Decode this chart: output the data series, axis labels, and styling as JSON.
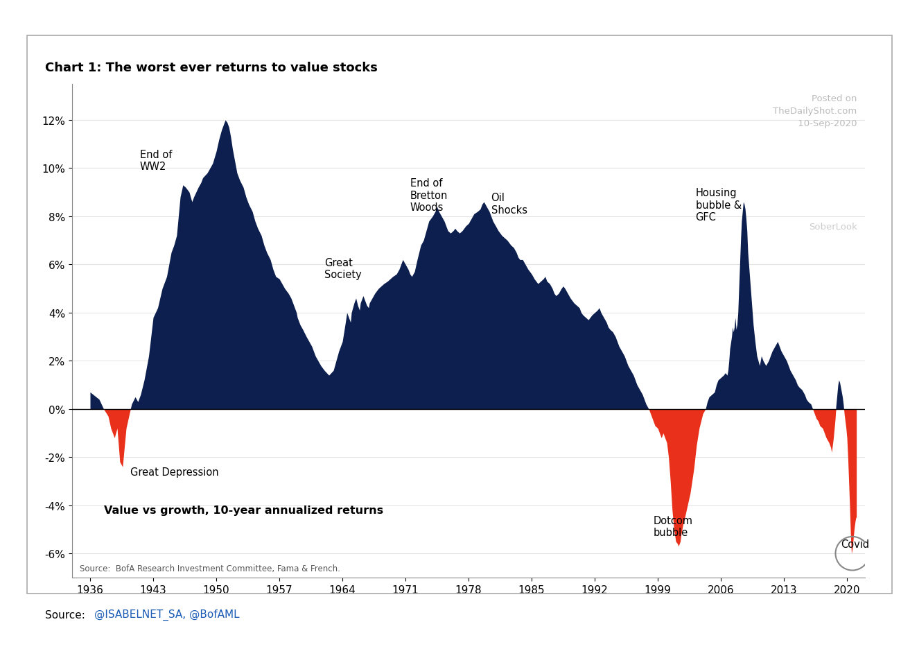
{
  "title": "Chart 1: The worst ever returns to value stocks",
  "subtitle": "Value vs growth, 10-year annualized returns",
  "source_inner": "Source:  BofA Research Investment Committee, Fama & French.",
  "source_outer_prefix": "Source: ",
  "source_outer_link": "@ISABELNET_SA, @BofAML",
  "watermark_line1": "Posted on",
  "watermark_line2": "TheDailyShot.com",
  "watermark_line3": "10-Sep-2020",
  "watermark_line4": "SoberLook",
  "positive_color": "#0d1f4e",
  "negative_color": "#e8301a",
  "background_color": "#ffffff",
  "chart_bg_color": "#ffffff",
  "ylim": [
    -0.07,
    0.135
  ],
  "yticks": [
    -0.06,
    -0.04,
    -0.02,
    0.0,
    0.02,
    0.04,
    0.06,
    0.08,
    0.1,
    0.12
  ],
  "ytick_labels": [
    "-6%",
    "-4%",
    "-2%",
    "0%",
    "2%",
    "4%",
    "6%",
    "8%",
    "10%",
    "12%"
  ],
  "xtick_years": [
    1936,
    1943,
    1950,
    1957,
    1964,
    1971,
    1978,
    1985,
    1992,
    1999,
    2006,
    2013,
    2020
  ],
  "key_data": [
    [
      1936,
      0.007
    ],
    [
      1937,
      0.004
    ],
    [
      1937.5,
      0.0
    ],
    [
      1938,
      -0.003
    ],
    [
      1938.3,
      -0.008
    ],
    [
      1938.7,
      -0.012
    ],
    [
      1939,
      -0.008
    ],
    [
      1939.3,
      -0.022
    ],
    [
      1939.6,
      -0.024
    ],
    [
      1940,
      -0.008
    ],
    [
      1940.3,
      -0.003
    ],
    [
      1940.6,
      0.002
    ],
    [
      1941,
      0.005
    ],
    [
      1941.3,
      0.003
    ],
    [
      1941.6,
      0.006
    ],
    [
      1942,
      0.012
    ],
    [
      1942.5,
      0.022
    ],
    [
      1943,
      0.038
    ],
    [
      1943.5,
      0.042
    ],
    [
      1944,
      0.05
    ],
    [
      1944.5,
      0.055
    ],
    [
      1945,
      0.065
    ],
    [
      1945.3,
      0.068
    ],
    [
      1945.6,
      0.072
    ],
    [
      1946,
      0.088
    ],
    [
      1946.3,
      0.093
    ],
    [
      1946.6,
      0.092
    ],
    [
      1947,
      0.09
    ],
    [
      1947.3,
      0.086
    ],
    [
      1947.5,
      0.088
    ],
    [
      1948,
      0.092
    ],
    [
      1948.3,
      0.094
    ],
    [
      1948.5,
      0.096
    ],
    [
      1949,
      0.098
    ],
    [
      1949.3,
      0.1
    ],
    [
      1949.6,
      0.102
    ],
    [
      1950,
      0.107
    ],
    [
      1950.3,
      0.112
    ],
    [
      1950.6,
      0.116
    ],
    [
      1951,
      0.12
    ],
    [
      1951.2,
      0.119
    ],
    [
      1951.4,
      0.117
    ],
    [
      1951.6,
      0.113
    ],
    [
      1951.8,
      0.108
    ],
    [
      1952,
      0.104
    ],
    [
      1952.3,
      0.098
    ],
    [
      1952.6,
      0.095
    ],
    [
      1953,
      0.092
    ],
    [
      1953.3,
      0.088
    ],
    [
      1953.6,
      0.085
    ],
    [
      1954,
      0.082
    ],
    [
      1954.3,
      0.078
    ],
    [
      1954.6,
      0.075
    ],
    [
      1955,
      0.072
    ],
    [
      1955.3,
      0.068
    ],
    [
      1955.6,
      0.065
    ],
    [
      1956,
      0.062
    ],
    [
      1956.3,
      0.058
    ],
    [
      1956.6,
      0.055
    ],
    [
      1957,
      0.054
    ],
    [
      1957.3,
      0.052
    ],
    [
      1957.6,
      0.05
    ],
    [
      1958,
      0.048
    ],
    [
      1958.3,
      0.046
    ],
    [
      1958.5,
      0.044
    ],
    [
      1958.7,
      0.042
    ],
    [
      1958.9,
      0.04
    ],
    [
      1959,
      0.038
    ],
    [
      1959.3,
      0.035
    ],
    [
      1959.6,
      0.033
    ],
    [
      1960,
      0.03
    ],
    [
      1960.3,
      0.028
    ],
    [
      1960.6,
      0.026
    ],
    [
      1961,
      0.022
    ],
    [
      1961.3,
      0.02
    ],
    [
      1961.6,
      0.018
    ],
    [
      1962,
      0.016
    ],
    [
      1962.5,
      0.014
    ],
    [
      1963,
      0.016
    ],
    [
      1963.3,
      0.02
    ],
    [
      1963.6,
      0.024
    ],
    [
      1964,
      0.028
    ],
    [
      1964.3,
      0.035
    ],
    [
      1964.5,
      0.04
    ],
    [
      1964.7,
      0.038
    ],
    [
      1964.9,
      0.036
    ],
    [
      1965,
      0.04
    ],
    [
      1965.3,
      0.044
    ],
    [
      1965.5,
      0.046
    ],
    [
      1965.7,
      0.043
    ],
    [
      1965.9,
      0.041
    ],
    [
      1966,
      0.044
    ],
    [
      1966.3,
      0.047
    ],
    [
      1966.5,
      0.045
    ],
    [
      1966.7,
      0.043
    ],
    [
      1966.9,
      0.042
    ],
    [
      1967,
      0.044
    ],
    [
      1967.3,
      0.046
    ],
    [
      1967.6,
      0.048
    ],
    [
      1968,
      0.05
    ],
    [
      1968.3,
      0.051
    ],
    [
      1968.6,
      0.052
    ],
    [
      1969,
      0.053
    ],
    [
      1969.3,
      0.054
    ],
    [
      1969.6,
      0.055
    ],
    [
      1970,
      0.056
    ],
    [
      1970.3,
      0.058
    ],
    [
      1970.5,
      0.06
    ],
    [
      1970.7,
      0.062
    ],
    [
      1971,
      0.06
    ],
    [
      1971.3,
      0.058
    ],
    [
      1971.5,
      0.056
    ],
    [
      1971.7,
      0.055
    ],
    [
      1972,
      0.057
    ],
    [
      1972.3,
      0.062
    ],
    [
      1972.5,
      0.065
    ],
    [
      1972.7,
      0.068
    ],
    [
      1973,
      0.07
    ],
    [
      1973.3,
      0.074
    ],
    [
      1973.6,
      0.078
    ],
    [
      1974,
      0.08
    ],
    [
      1974.3,
      0.082
    ],
    [
      1974.5,
      0.084
    ],
    [
      1974.7,
      0.082
    ],
    [
      1975,
      0.08
    ],
    [
      1975.3,
      0.078
    ],
    [
      1975.5,
      0.076
    ],
    [
      1975.7,
      0.074
    ],
    [
      1976,
      0.073
    ],
    [
      1976.3,
      0.074
    ],
    [
      1976.5,
      0.075
    ],
    [
      1976.7,
      0.074
    ],
    [
      1977,
      0.073
    ],
    [
      1977.3,
      0.074
    ],
    [
      1977.5,
      0.075
    ],
    [
      1977.7,
      0.076
    ],
    [
      1978,
      0.077
    ],
    [
      1978.3,
      0.079
    ],
    [
      1978.6,
      0.081
    ],
    [
      1979,
      0.082
    ],
    [
      1979.3,
      0.083
    ],
    [
      1979.5,
      0.085
    ],
    [
      1979.7,
      0.086
    ],
    [
      1980,
      0.084
    ],
    [
      1980.3,
      0.082
    ],
    [
      1980.5,
      0.08
    ],
    [
      1980.7,
      0.078
    ],
    [
      1981,
      0.076
    ],
    [
      1981.3,
      0.074
    ],
    [
      1981.5,
      0.073
    ],
    [
      1981.7,
      0.072
    ],
    [
      1982,
      0.071
    ],
    [
      1982.3,
      0.07
    ],
    [
      1982.5,
      0.069
    ],
    [
      1982.7,
      0.068
    ],
    [
      1983,
      0.067
    ],
    [
      1983.3,
      0.065
    ],
    [
      1983.5,
      0.063
    ],
    [
      1983.7,
      0.062
    ],
    [
      1984,
      0.062
    ],
    [
      1984.3,
      0.06
    ],
    [
      1984.6,
      0.058
    ],
    [
      1985,
      0.056
    ],
    [
      1985.3,
      0.054
    ],
    [
      1985.5,
      0.053
    ],
    [
      1985.7,
      0.052
    ],
    [
      1986,
      0.053
    ],
    [
      1986.3,
      0.054
    ],
    [
      1986.5,
      0.055
    ],
    [
      1986.7,
      0.053
    ],
    [
      1987,
      0.052
    ],
    [
      1987.3,
      0.05
    ],
    [
      1987.5,
      0.048
    ],
    [
      1987.7,
      0.047
    ],
    [
      1988,
      0.048
    ],
    [
      1988.3,
      0.05
    ],
    [
      1988.5,
      0.051
    ],
    [
      1988.7,
      0.05
    ],
    [
      1989,
      0.048
    ],
    [
      1989.3,
      0.046
    ],
    [
      1989.5,
      0.045
    ],
    [
      1989.7,
      0.044
    ],
    [
      1990,
      0.043
    ],
    [
      1990.3,
      0.042
    ],
    [
      1990.5,
      0.04
    ],
    [
      1990.7,
      0.039
    ],
    [
      1991,
      0.038
    ],
    [
      1991.3,
      0.037
    ],
    [
      1991.5,
      0.038
    ],
    [
      1991.7,
      0.039
    ],
    [
      1992,
      0.04
    ],
    [
      1992.3,
      0.041
    ],
    [
      1992.5,
      0.042
    ],
    [
      1992.7,
      0.04
    ],
    [
      1993,
      0.038
    ],
    [
      1993.3,
      0.036
    ],
    [
      1993.5,
      0.034
    ],
    [
      1993.7,
      0.033
    ],
    [
      1994,
      0.032
    ],
    [
      1994.3,
      0.03
    ],
    [
      1994.5,
      0.028
    ],
    [
      1994.7,
      0.026
    ],
    [
      1995,
      0.024
    ],
    [
      1995.3,
      0.022
    ],
    [
      1995.5,
      0.02
    ],
    [
      1995.7,
      0.018
    ],
    [
      1996,
      0.016
    ],
    [
      1996.3,
      0.014
    ],
    [
      1996.5,
      0.012
    ],
    [
      1996.7,
      0.01
    ],
    [
      1997,
      0.008
    ],
    [
      1997.3,
      0.006
    ],
    [
      1997.5,
      0.004
    ],
    [
      1997.7,
      0.002
    ],
    [
      1998,
      0.0
    ],
    [
      1998.3,
      -0.003
    ],
    [
      1998.5,
      -0.005
    ],
    [
      1998.7,
      -0.007
    ],
    [
      1999,
      -0.008
    ],
    [
      1999.2,
      -0.01
    ],
    [
      1999.4,
      -0.012
    ],
    [
      1999.6,
      -0.01
    ],
    [
      1999.8,
      -0.012
    ],
    [
      2000,
      -0.014
    ],
    [
      2000.2,
      -0.02
    ],
    [
      2000.4,
      -0.03
    ],
    [
      2000.6,
      -0.042
    ],
    [
      2000.8,
      -0.05
    ],
    [
      2001,
      -0.055
    ],
    [
      2001.2,
      -0.056
    ],
    [
      2001.3,
      -0.057
    ],
    [
      2001.4,
      -0.056
    ],
    [
      2001.5,
      -0.055
    ],
    [
      2001.6,
      -0.052
    ],
    [
      2001.8,
      -0.048
    ],
    [
      2002,
      -0.045
    ],
    [
      2002.3,
      -0.04
    ],
    [
      2002.6,
      -0.035
    ],
    [
      2003,
      -0.025
    ],
    [
      2003.3,
      -0.015
    ],
    [
      2003.6,
      -0.008
    ],
    [
      2004,
      -0.002
    ],
    [
      2004.3,
      0.0
    ],
    [
      2004.5,
      0.003
    ],
    [
      2004.7,
      0.005
    ],
    [
      2005,
      0.006
    ],
    [
      2005.3,
      0.007
    ],
    [
      2005.5,
      0.01
    ],
    [
      2005.7,
      0.012
    ],
    [
      2006,
      0.013
    ],
    [
      2006.3,
      0.014
    ],
    [
      2006.5,
      0.015
    ],
    [
      2006.7,
      0.014
    ],
    [
      2006.8,
      0.016
    ],
    [
      2006.9,
      0.02
    ],
    [
      2007,
      0.025
    ],
    [
      2007.2,
      0.03
    ],
    [
      2007.3,
      0.034
    ],
    [
      2007.4,
      0.032
    ],
    [
      2007.5,
      0.034
    ],
    [
      2007.6,
      0.038
    ],
    [
      2007.7,
      0.033
    ],
    [
      2007.8,
      0.035
    ],
    [
      2007.9,
      0.04
    ],
    [
      2008,
      0.05
    ],
    [
      2008.1,
      0.06
    ],
    [
      2008.2,
      0.07
    ],
    [
      2008.3,
      0.078
    ],
    [
      2008.4,
      0.082
    ],
    [
      2008.5,
      0.086
    ],
    [
      2008.6,
      0.085
    ],
    [
      2008.7,
      0.083
    ],
    [
      2008.8,
      0.079
    ],
    [
      2008.9,
      0.074
    ],
    [
      2009,
      0.065
    ],
    [
      2009.2,
      0.055
    ],
    [
      2009.4,
      0.045
    ],
    [
      2009.6,
      0.035
    ],
    [
      2009.8,
      0.028
    ],
    [
      2010,
      0.022
    ],
    [
      2010.3,
      0.018
    ],
    [
      2010.5,
      0.022
    ],
    [
      2010.7,
      0.02
    ],
    [
      2011,
      0.018
    ],
    [
      2011.3,
      0.02
    ],
    [
      2011.5,
      0.022
    ],
    [
      2011.7,
      0.024
    ],
    [
      2012,
      0.026
    ],
    [
      2012.3,
      0.028
    ],
    [
      2012.5,
      0.026
    ],
    [
      2012.7,
      0.024
    ],
    [
      2013,
      0.022
    ],
    [
      2013.3,
      0.02
    ],
    [
      2013.5,
      0.018
    ],
    [
      2013.7,
      0.016
    ],
    [
      2014,
      0.014
    ],
    [
      2014.3,
      0.012
    ],
    [
      2014.5,
      0.01
    ],
    [
      2014.7,
      0.009
    ],
    [
      2015,
      0.008
    ],
    [
      2015.3,
      0.006
    ],
    [
      2015.5,
      0.004
    ],
    [
      2015.7,
      0.003
    ],
    [
      2016,
      0.002
    ],
    [
      2016.2,
      0.0
    ],
    [
      2016.4,
      -0.002
    ],
    [
      2016.6,
      -0.004
    ],
    [
      2016.8,
      -0.005
    ],
    [
      2017,
      -0.007
    ],
    [
      2017.3,
      -0.008
    ],
    [
      2017.5,
      -0.01
    ],
    [
      2017.7,
      -0.012
    ],
    [
      2018,
      -0.014
    ],
    [
      2018.2,
      -0.016
    ],
    [
      2018.3,
      -0.018
    ],
    [
      2018.4,
      -0.015
    ],
    [
      2018.5,
      -0.012
    ],
    [
      2018.6,
      -0.008
    ],
    [
      2018.7,
      -0.004
    ],
    [
      2018.8,
      0.002
    ],
    [
      2018.9,
      0.006
    ],
    [
      2019,
      0.01
    ],
    [
      2019.1,
      0.012
    ],
    [
      2019.2,
      0.011
    ],
    [
      2019.3,
      0.009
    ],
    [
      2019.4,
      0.007
    ],
    [
      2019.5,
      0.005
    ],
    [
      2019.6,
      0.002
    ],
    [
      2019.7,
      -0.002
    ],
    [
      2019.8,
      -0.005
    ],
    [
      2019.9,
      -0.008
    ],
    [
      2020,
      -0.012
    ],
    [
      2020.1,
      -0.02
    ],
    [
      2020.2,
      -0.03
    ],
    [
      2020.3,
      -0.04
    ],
    [
      2020.4,
      -0.052
    ],
    [
      2020.5,
      -0.06
    ],
    [
      2020.6,
      -0.058
    ],
    [
      2020.7,
      -0.054
    ],
    [
      2020.8,
      -0.05
    ],
    [
      2020.9,
      -0.047
    ],
    [
      2021,
      -0.045
    ]
  ]
}
